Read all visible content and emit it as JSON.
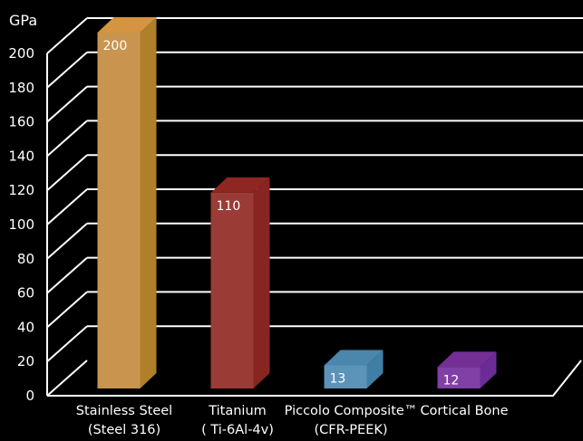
{
  "chart_data": {
    "type": "bar",
    "style": "3d-column",
    "unit": "GPa",
    "ylim": [
      0,
      200
    ],
    "yticks": [
      "0",
      "20",
      "40",
      "60",
      "80",
      "100",
      "120",
      "140",
      "160",
      "180",
      "200"
    ],
    "grid": true,
    "categories": [
      [
        "Stainless Steel",
        "(Steel 316)"
      ],
      [
        "Titanium",
        "( Ti-6Al-4v)"
      ],
      [
        "Piccolo Composite™",
        "(CFR-PEEK)"
      ],
      [
        "Cortical Bone"
      ]
    ],
    "values": [
      200,
      110,
      13,
      12
    ],
    "data_labels": [
      "200",
      "110",
      "13",
      "12"
    ],
    "colors": [
      {
        "front": "#c9954e",
        "side": "#b07f2c",
        "top": "#d49440"
      },
      {
        "front": "#9a3b36",
        "side": "#872520",
        "top": "#8e2622"
      },
      {
        "front": "#5b93b9",
        "side": "#3f7fa7",
        "top": "#4b86ad"
      },
      {
        "front": "#8140a5",
        "side": "#6b2c97",
        "top": "#742f96"
      }
    ],
    "background": "#000000",
    "grid_color": "#ffffff"
  }
}
